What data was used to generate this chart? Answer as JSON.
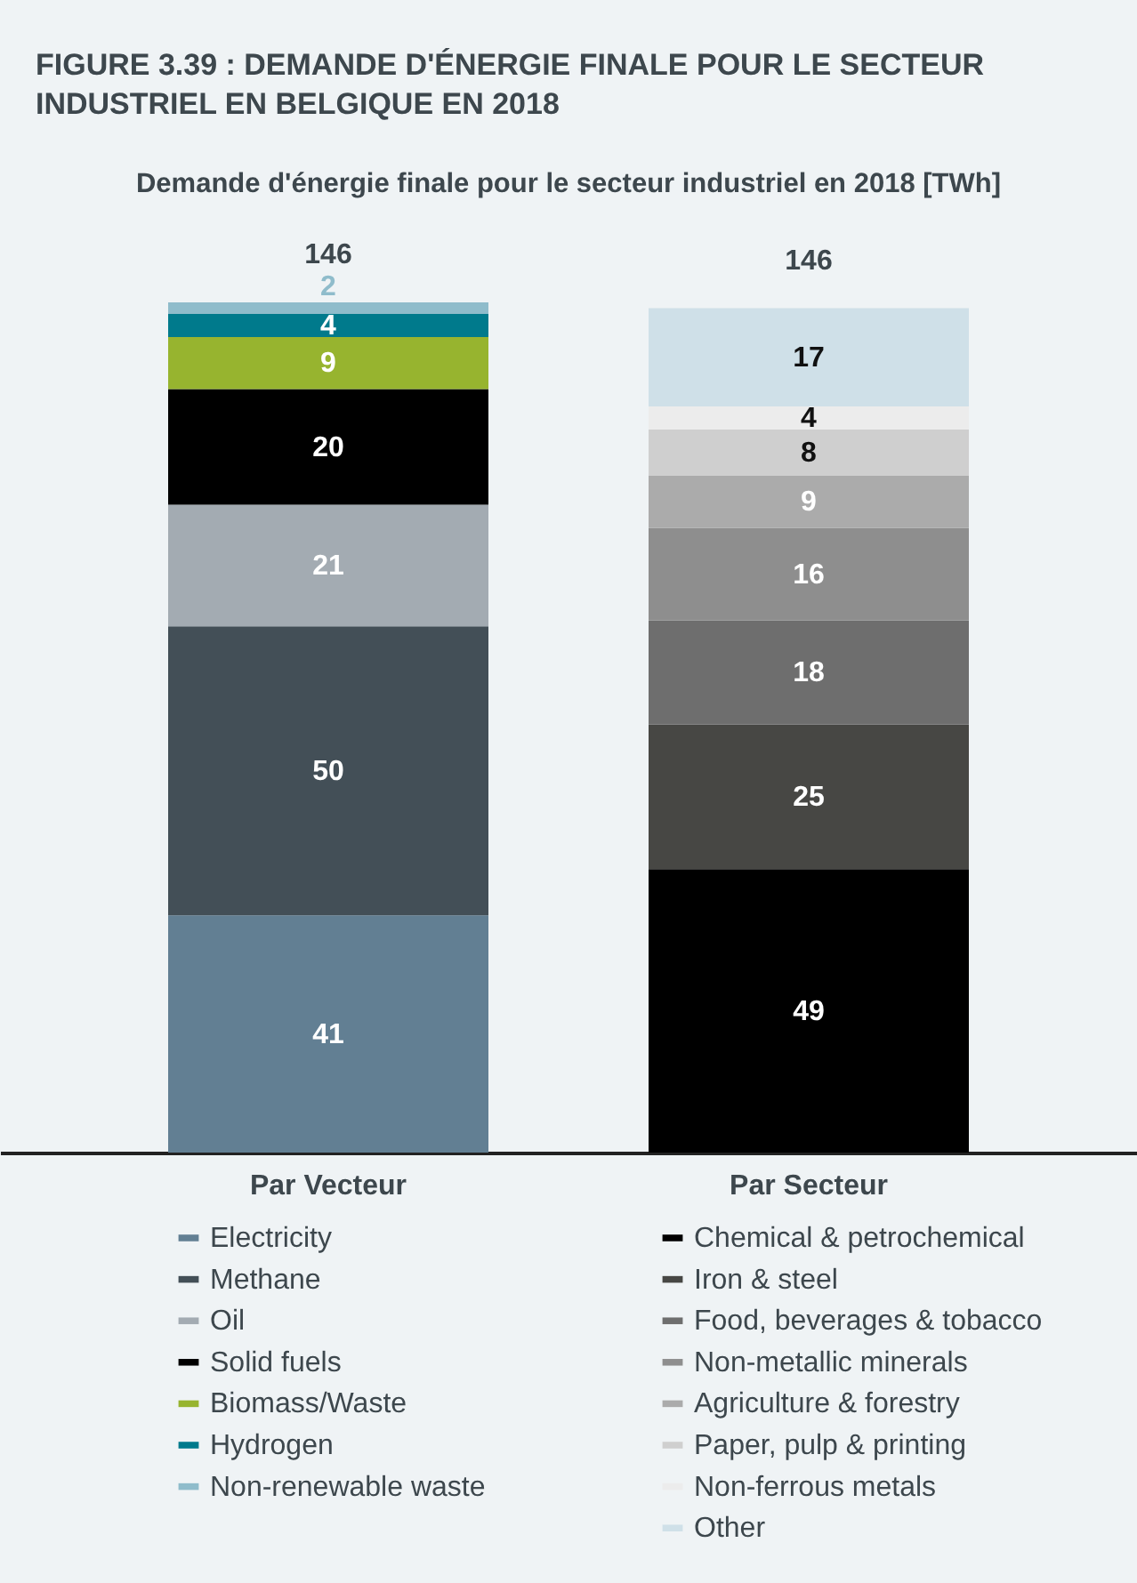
{
  "chart_data": {
    "type": "bar",
    "stacked": true,
    "title": "FIGURE 3.39 : DEMANDE D'ÉNERGIE FINALE POUR LE SECTEUR INDUSTRIEL EN BELGIQUE EN 2018",
    "subtitle": "Demande d'énergie finale pour le secteur industriel en 2018 [TWh]",
    "categories": [
      "Par Vecteur",
      "Par Secteur"
    ],
    "series": [
      {
        "name": "Electricity",
        "color": "#627f93",
        "values": [
          41,
          null
        ]
      },
      {
        "name": "Methane",
        "color": "#434f57",
        "values": [
          50,
          null
        ]
      },
      {
        "name": "Oil",
        "color": "#a3abb2",
        "values": [
          21,
          null
        ]
      },
      {
        "name": "Solid fuels",
        "color": "#000000",
        "values": [
          20,
          null
        ]
      },
      {
        "name": "Biomass/Waste",
        "color": "#97b42f",
        "values": [
          9,
          null
        ]
      },
      {
        "name": "Hydrogen",
        "color": "#007a8c",
        "values": [
          4,
          null
        ]
      },
      {
        "name": "Non-renewable waste",
        "color": "#8fbccb",
        "values": [
          2,
          null
        ]
      },
      {
        "name": "Chemical & petrochemical",
        "color": "#000000",
        "values": [
          null,
          49
        ]
      },
      {
        "name": "Iron & steel",
        "color": "#474744",
        "values": [
          null,
          25
        ]
      },
      {
        "name": "Food, beverages & tobacco",
        "color": "#6e6e6e",
        "values": [
          null,
          18
        ]
      },
      {
        "name": "Non-metallic minerals",
        "color": "#8e8e8e",
        "values": [
          null,
          16
        ]
      },
      {
        "name": "Agriculture & forestry",
        "color": "#ababab",
        "values": [
          null,
          9
        ]
      },
      {
        "name": "Paper, pulp & printing",
        "color": "#cfcfcf",
        "values": [
          null,
          8
        ]
      },
      {
        "name": "Non-ferrous metals",
        "color": "#ececec",
        "values": [
          null,
          4
        ]
      },
      {
        "name": "Other",
        "color": "#cfe0e8",
        "values": [
          null,
          17
        ]
      }
    ],
    "data_labels": true,
    "totals": [
      "146",
      "146"
    ],
    "legend": "bottom"
  }
}
